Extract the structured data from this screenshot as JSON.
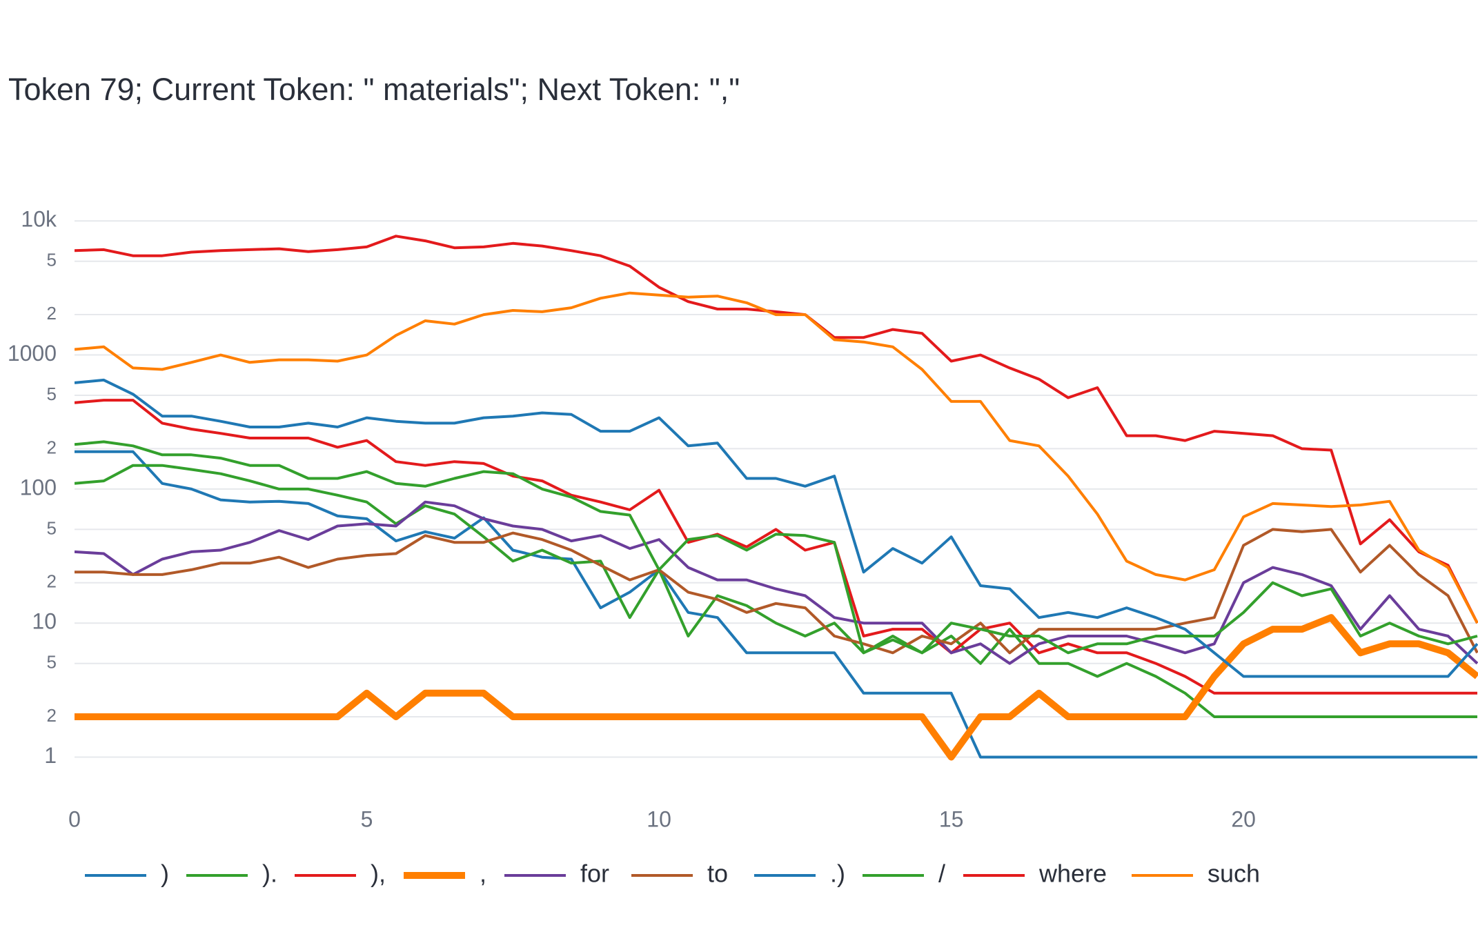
{
  "chart_data": {
    "type": "line",
    "title": "Token 79; Current Token: \" materials\"; Next Token: \",\"",
    "log_y": true,
    "grid": true,
    "legend_position": "bottom",
    "xlim": [
      0,
      24
    ],
    "xticks": [
      0,
      5,
      10,
      15,
      20
    ],
    "ylim": [
      0.55,
      17500
    ],
    "yticks": [
      1,
      2,
      5,
      10,
      {
        "value": 20,
        "label": "2"
      },
      {
        "value": 50,
        "label": "5"
      },
      100,
      {
        "value": 200,
        "label": "2"
      },
      {
        "value": 500,
        "label": "5"
      },
      1000,
      {
        "value": 2000,
        "label": "2"
      },
      {
        "value": 5000,
        "label": "5"
      },
      {
        "value": 10000,
        "label": "10k"
      }
    ],
    "x": [
      0,
      0.5,
      1,
      1.5,
      2,
      2.5,
      3,
      3.5,
      4,
      4.5,
      5,
      5.5,
      6,
      6.5,
      7,
      7.5,
      8,
      8.5,
      9,
      9.5,
      10,
      10.5,
      11,
      11.5,
      12,
      12.5,
      13,
      13.5,
      14,
      14.5,
      15,
      15.5,
      16,
      16.5,
      17,
      17.5,
      18,
      18.5,
      19,
      19.5,
      20,
      20.5,
      21,
      21.5,
      22,
      22.5,
      23,
      23.5,
      24
    ],
    "series": [
      {
        "name": ")",
        "color": "#1f78b4",
        "width": 4,
        "values": [
          190,
          190,
          190,
          110,
          100,
          83,
          80,
          81,
          78,
          63,
          60,
          41,
          48,
          43,
          61,
          35,
          31,
          30,
          13,
          17,
          25,
          12,
          11,
          6,
          6,
          6,
          6,
          3,
          3,
          3,
          3,
          1,
          1,
          1,
          1,
          1,
          1,
          1,
          1,
          1,
          1,
          1,
          1,
          1,
          1,
          1,
          1,
          1,
          1
        ]
      },
      {
        "name": ").",
        "color": "#33a02c",
        "width": 4,
        "values": [
          110,
          115,
          150,
          150,
          140,
          130,
          115,
          100,
          100,
          90,
          80,
          55,
          75,
          65,
          44,
          29,
          35,
          28,
          29,
          11,
          25,
          8,
          16,
          13.5,
          10,
          8,
          10,
          6,
          8,
          6,
          8,
          5,
          9,
          5,
          5,
          4,
          5,
          4,
          3,
          2,
          2,
          2,
          2,
          2,
          2,
          2,
          2,
          2,
          2
        ]
      },
      {
        "name": "),",
        "color": "#e31a1c",
        "width": 4,
        "values": [
          440,
          460,
          460,
          310,
          280,
          260,
          240,
          240,
          240,
          205,
          230,
          160,
          150,
          160,
          155,
          125,
          115,
          90,
          80,
          70,
          98,
          40,
          46,
          37,
          50,
          35,
          40,
          8,
          9,
          9,
          6,
          9,
          10,
          6,
          7,
          6,
          6,
          5,
          4,
          3,
          3,
          3,
          3,
          3,
          3,
          3,
          3,
          3,
          3
        ]
      },
      {
        "name": ",",
        "color": "#ff7f00",
        "width": 10,
        "values": [
          2,
          2,
          2,
          2,
          2,
          2,
          2,
          2,
          2,
          2,
          3,
          2,
          3,
          3,
          3,
          2,
          2,
          2,
          2,
          2,
          2,
          2,
          2,
          2,
          2,
          2,
          2,
          2,
          2,
          2,
          1,
          2,
          2,
          3,
          2,
          2,
          2,
          2,
          2,
          4,
          7,
          9,
          9,
          11,
          6,
          7,
          7,
          6,
          4
        ]
      },
      {
        "name": "for",
        "color": "#6a3d9a",
        "width": 4,
        "values": [
          34,
          33,
          23,
          30,
          34,
          35,
          40,
          49,
          42,
          53,
          55,
          53,
          80,
          75,
          60,
          53,
          50,
          41,
          45,
          36,
          42,
          26,
          21,
          21,
          18,
          16,
          11,
          10,
          10,
          10,
          6,
          7,
          5,
          7,
          8,
          8,
          8,
          7,
          6,
          7,
          20,
          26,
          23,
          19,
          9,
          16,
          9,
          8,
          5
        ]
      },
      {
        "name": "to",
        "color": "#b15928",
        "width": 4,
        "values": [
          24,
          24,
          23,
          23,
          25,
          28,
          28,
          31,
          26,
          30,
          32,
          33,
          45,
          40,
          40,
          47,
          42,
          35,
          27,
          21,
          25,
          17,
          15,
          12,
          14,
          13,
          8,
          7,
          6,
          8,
          7,
          10,
          6,
          9,
          9,
          9,
          9,
          9,
          10,
          11,
          38,
          50,
          48,
          50,
          24,
          38,
          23,
          16,
          6
        ]
      },
      {
        "name": ".)",
        "color": "#1f78b4",
        "width": 4,
        "values": [
          620,
          650,
          510,
          350,
          350,
          320,
          290,
          290,
          310,
          290,
          340,
          320,
          310,
          310,
          340,
          350,
          370,
          360,
          270,
          270,
          340,
          210,
          220,
          120,
          120,
          105,
          125,
          24,
          36,
          28,
          44,
          19,
          18,
          11,
          12,
          11,
          13,
          11,
          9,
          6,
          4,
          4,
          4,
          4,
          4,
          4,
          4,
          4,
          7
        ]
      },
      {
        "name": "/",
        "color": "#33a02c",
        "width": 4,
        "values": [
          215,
          225,
          210,
          180,
          180,
          170,
          150,
          150,
          120,
          120,
          135,
          110,
          105,
          120,
          135,
          130,
          100,
          87,
          68,
          64,
          25,
          42,
          45,
          35,
          46,
          45,
          40,
          6,
          7.5,
          6,
          10,
          9,
          8,
          8,
          6,
          7,
          7,
          8,
          8,
          8,
          12,
          20,
          16,
          18,
          8,
          10,
          8,
          7,
          8
        ]
      },
      {
        "name": "where",
        "color": "#e31a1c",
        "width": 4,
        "values": [
          6000,
          6100,
          5500,
          5500,
          5850,
          6000,
          6100,
          6200,
          5900,
          6100,
          6400,
          7700,
          7100,
          6300,
          6400,
          6800,
          6500,
          6000,
          5500,
          4600,
          3200,
          2500,
          2200,
          2200,
          2100,
          2000,
          1350,
          1350,
          1550,
          1450,
          900,
          1000,
          800,
          660,
          480,
          570,
          250,
          250,
          230,
          270,
          260,
          250,
          200,
          195,
          39,
          59,
          34,
          27,
          10
        ]
      },
      {
        "name": "such",
        "color": "#ff7f00",
        "width": 4,
        "values": [
          1100,
          1150,
          800,
          780,
          880,
          1000,
          880,
          920,
          920,
          900,
          1000,
          1400,
          1800,
          1700,
          2000,
          2150,
          2100,
          2250,
          2650,
          2900,
          2800,
          2700,
          2750,
          2450,
          2000,
          2000,
          1300,
          1250,
          1150,
          780,
          450,
          450,
          230,
          210,
          125,
          65,
          29,
          23,
          21,
          25,
          62,
          78,
          76,
          74,
          76,
          81,
          35,
          26,
          10
        ]
      }
    ]
  }
}
